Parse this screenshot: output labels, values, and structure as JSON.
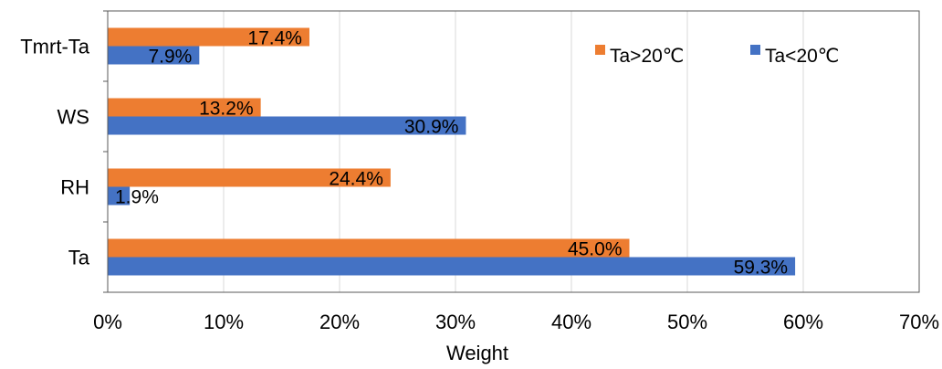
{
  "chart_data": {
    "type": "bar",
    "orientation": "horizontal",
    "categories": [
      "Ta",
      "RH",
      "WS",
      "Tmrt-Ta"
    ],
    "series": [
      {
        "name": "Ta>20℃",
        "color": "#ED7D31",
        "values": [
          45.0,
          24.4,
          13.2,
          17.4
        ],
        "labels": [
          "45.0%",
          "24.4%",
          "13.2%",
          "17.4%"
        ]
      },
      {
        "name": "Ta<20℃",
        "color": "#4472C4",
        "values": [
          59.3,
          1.9,
          30.9,
          7.9
        ],
        "labels": [
          "59.3%",
          "1.9%",
          "30.9%",
          "7.9%"
        ]
      }
    ],
    "xlabel": "Weight",
    "ylabel": "",
    "xlim": [
      0,
      70
    ],
    "xticks": [
      0,
      10,
      20,
      30,
      40,
      50,
      60,
      70
    ],
    "xtick_labels": [
      "0%",
      "10%",
      "20%",
      "30%",
      "40%",
      "50%",
      "60%",
      "70%"
    ],
    "grid": "vertical",
    "legend_position": "top-right"
  }
}
